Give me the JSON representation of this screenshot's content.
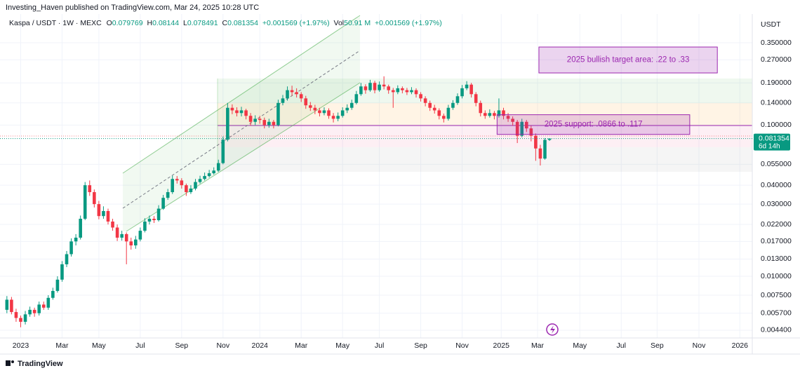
{
  "header": "Investing_Haven published on TradingView.com, Mar 24, 2025 10:28 UTC",
  "footer": "TradingView",
  "chart_data": {
    "type": "candlestick",
    "symbol": "Kaspa / USDT · 1W · MEXC",
    "legend_labels": [
      "O",
      "H",
      "L",
      "C",
      "Vol"
    ],
    "volume": "50.91 M",
    "change": "+0.001569 (+1.97%)",
    "currency": "USDT",
    "countdown": "6d 14h",
    "up_color": "#089981",
    "down_color": "#f23645",
    "log": true,
    "grid": true,
    "ylim": [
      0.00391,
      0.542
    ],
    "yticks": [
      {
        "value": 0.35,
        "label": "0.350000"
      },
      {
        "value": 0.27,
        "label": "0.270000"
      },
      {
        "value": 0.19,
        "label": "0.190000"
      },
      {
        "value": 0.14,
        "label": "0.140000"
      },
      {
        "value": 0.1,
        "label": "0.100000"
      },
      {
        "value": 0.055,
        "label": "0.055000"
      },
      {
        "value": 0.04,
        "label": "0.040000"
      },
      {
        "value": 0.03,
        "label": "0.030000"
      },
      {
        "value": 0.022,
        "label": "0.022000"
      },
      {
        "value": 0.017,
        "label": "0.017000"
      },
      {
        "value": 0.013,
        "label": "0.013000"
      },
      {
        "value": 0.01,
        "label": "0.010000"
      },
      {
        "value": 0.0075,
        "label": "0.007500"
      },
      {
        "value": 0.0057,
        "label": "0.005700"
      },
      {
        "value": 0.0044,
        "label": "0.004400"
      }
    ],
    "xlim": [
      -1.5,
      162.1
    ],
    "xticks": [
      {
        "value": 3,
        "label": "2023"
      },
      {
        "value": 12,
        "label": "Mar"
      },
      {
        "value": 20,
        "label": "May"
      },
      {
        "value": 29,
        "label": "Jul"
      },
      {
        "value": 38,
        "label": "Sep"
      },
      {
        "value": 47,
        "label": "Nov"
      },
      {
        "value": 55,
        "label": "2024"
      },
      {
        "value": 64,
        "label": "Mar"
      },
      {
        "value": 73,
        "label": "May"
      },
      {
        "value": 81,
        "label": "Jul"
      },
      {
        "value": 90,
        "label": "Sep"
      },
      {
        "value": 99,
        "label": "Nov"
      },
      {
        "value": 107.5,
        "label": "2025"
      },
      {
        "value": 115.4,
        "label": "Mar"
      },
      {
        "value": 124.6,
        "label": "May"
      },
      {
        "value": 133.6,
        "label": "Jul"
      },
      {
        "value": 141.4,
        "label": "Sep"
      },
      {
        "value": 150.5,
        "label": "Nov"
      },
      {
        "value": 159.4,
        "label": "2026"
      }
    ],
    "annotations": [
      {
        "text": "2025 bullish target area: .22 to .33",
        "x": [
          115.7,
          154.5
        ],
        "y": [
          0.221,
          0.328
        ]
      },
      {
        "text": "2025 support: .0866 to .117",
        "x": [
          106.6,
          148.5
        ],
        "y": [
          0.0867,
          0.117
        ]
      }
    ],
    "ohlc": [
      [
        0.006,
        0.0074,
        0.0057,
        0.007
      ],
      [
        0.007,
        0.0073,
        0.0056,
        0.0058
      ],
      [
        0.0058,
        0.0061,
        0.005,
        0.0053
      ],
      [
        0.0053,
        0.0055,
        0.0046,
        0.005
      ],
      [
        0.005,
        0.0059,
        0.0048,
        0.0056
      ],
      [
        0.0056,
        0.0063,
        0.0054,
        0.006
      ],
      [
        0.006,
        0.0062,
        0.0054,
        0.0057
      ],
      [
        0.0057,
        0.0068,
        0.0055,
        0.0065
      ],
      [
        0.0065,
        0.0068,
        0.006,
        0.0062
      ],
      [
        0.0062,
        0.0075,
        0.006,
        0.0072
      ],
      [
        0.0072,
        0.0084,
        0.007,
        0.008
      ],
      [
        0.008,
        0.01,
        0.0078,
        0.0095
      ],
      [
        0.0095,
        0.0126,
        0.0092,
        0.012
      ],
      [
        0.012,
        0.0147,
        0.0115,
        0.014
      ],
      [
        0.014,
        0.0178,
        0.0135,
        0.017
      ],
      [
        0.017,
        0.019,
        0.016,
        0.018
      ],
      [
        0.018,
        0.0252,
        0.0175,
        0.024
      ],
      [
        0.024,
        0.042,
        0.0235,
        0.04
      ],
      [
        0.04,
        0.043,
        0.034,
        0.036
      ],
      [
        0.036,
        0.0375,
        0.0285,
        0.03
      ],
      [
        0.03,
        0.0315,
        0.0238,
        0.025
      ],
      [
        0.025,
        0.029,
        0.024,
        0.027
      ],
      [
        0.027,
        0.028,
        0.022,
        0.023
      ],
      [
        0.023,
        0.024,
        0.02,
        0.021
      ],
      [
        0.021,
        0.022,
        0.0171,
        0.018
      ],
      [
        0.018,
        0.02,
        0.0172,
        0.019
      ],
      [
        0.019,
        0.0195,
        0.012,
        0.017
      ],
      [
        0.017,
        0.018,
        0.015,
        0.016
      ],
      [
        0.016,
        0.0185,
        0.0152,
        0.0175
      ],
      [
        0.0175,
        0.021,
        0.017,
        0.02
      ],
      [
        0.02,
        0.0242,
        0.0195,
        0.023
      ],
      [
        0.023,
        0.0252,
        0.022,
        0.024
      ],
      [
        0.024,
        0.025,
        0.0225,
        0.0235
      ],
      [
        0.0235,
        0.0295,
        0.023,
        0.028
      ],
      [
        0.028,
        0.0345,
        0.0275,
        0.033
      ],
      [
        0.033,
        0.0378,
        0.032,
        0.036
      ],
      [
        0.036,
        0.0462,
        0.035,
        0.044
      ],
      [
        0.044,
        0.046,
        0.041,
        0.043
      ],
      [
        0.043,
        0.0445,
        0.038,
        0.04
      ],
      [
        0.04,
        0.041,
        0.034,
        0.036
      ],
      [
        0.036,
        0.04,
        0.035,
        0.038
      ],
      [
        0.038,
        0.044,
        0.037,
        0.042
      ],
      [
        0.042,
        0.0462,
        0.041,
        0.044
      ],
      [
        0.044,
        0.0485,
        0.043,
        0.046
      ],
      [
        0.046,
        0.0505,
        0.045,
        0.048
      ],
      [
        0.048,
        0.0525,
        0.047,
        0.05
      ],
      [
        0.05,
        0.059,
        0.049,
        0.056
      ],
      [
        0.056,
        0.084,
        0.055,
        0.08
      ],
      [
        0.08,
        0.14,
        0.078,
        0.13
      ],
      [
        0.13,
        0.137,
        0.118,
        0.125
      ],
      [
        0.125,
        0.131,
        0.114,
        0.12
      ],
      [
        0.12,
        0.132,
        0.114,
        0.125
      ],
      [
        0.125,
        0.128,
        0.109,
        0.115
      ],
      [
        0.115,
        0.12,
        0.099,
        0.105
      ],
      [
        0.105,
        0.116,
        0.1,
        0.11
      ],
      [
        0.11,
        0.115,
        0.102,
        0.108
      ],
      [
        0.108,
        0.112,
        0.095,
        0.1
      ],
      [
        0.1,
        0.11,
        0.096,
        0.105
      ],
      [
        0.105,
        0.108,
        0.095,
        0.1
      ],
      [
        0.1,
        0.147,
        0.098,
        0.14
      ],
      [
        0.14,
        0.158,
        0.135,
        0.15
      ],
      [
        0.15,
        0.18,
        0.145,
        0.17
      ],
      [
        0.17,
        0.182,
        0.156,
        0.165
      ],
      [
        0.165,
        0.175,
        0.152,
        0.16
      ],
      [
        0.16,
        0.165,
        0.142,
        0.15
      ],
      [
        0.15,
        0.156,
        0.128,
        0.135
      ],
      [
        0.135,
        0.142,
        0.124,
        0.13
      ],
      [
        0.13,
        0.136,
        0.118,
        0.125
      ],
      [
        0.125,
        0.13,
        0.114,
        0.12
      ],
      [
        0.12,
        0.131,
        0.116,
        0.125
      ],
      [
        0.125,
        0.129,
        0.11,
        0.115
      ],
      [
        0.115,
        0.12,
        0.104,
        0.11
      ],
      [
        0.11,
        0.121,
        0.106,
        0.115
      ],
      [
        0.115,
        0.131,
        0.112,
        0.125
      ],
      [
        0.125,
        0.137,
        0.12,
        0.13
      ],
      [
        0.13,
        0.147,
        0.126,
        0.14
      ],
      [
        0.14,
        0.168,
        0.137,
        0.16
      ],
      [
        0.16,
        0.19,
        0.156,
        0.18
      ],
      [
        0.18,
        0.186,
        0.161,
        0.17
      ],
      [
        0.17,
        0.199,
        0.166,
        0.19
      ],
      [
        0.19,
        0.196,
        0.162,
        0.17
      ],
      [
        0.17,
        0.194,
        0.166,
        0.185
      ],
      [
        0.185,
        0.21,
        0.172,
        0.18
      ],
      [
        0.18,
        0.185,
        0.161,
        0.17
      ],
      [
        0.17,
        0.176,
        0.13,
        0.165
      ],
      [
        0.165,
        0.183,
        0.16,
        0.175
      ],
      [
        0.175,
        0.18,
        0.162,
        0.17
      ],
      [
        0.17,
        0.176,
        0.158,
        0.165
      ],
      [
        0.165,
        0.178,
        0.16,
        0.17
      ],
      [
        0.17,
        0.175,
        0.152,
        0.16
      ],
      [
        0.16,
        0.165,
        0.143,
        0.15
      ],
      [
        0.15,
        0.155,
        0.133,
        0.14
      ],
      [
        0.14,
        0.145,
        0.124,
        0.13
      ],
      [
        0.13,
        0.136,
        0.119,
        0.125
      ],
      [
        0.125,
        0.129,
        0.109,
        0.115
      ],
      [
        0.115,
        0.119,
        0.104,
        0.11
      ],
      [
        0.11,
        0.136,
        0.107,
        0.13
      ],
      [
        0.13,
        0.146,
        0.126,
        0.14
      ],
      [
        0.14,
        0.162,
        0.136,
        0.155
      ],
      [
        0.155,
        0.184,
        0.15,
        0.175
      ],
      [
        0.175,
        0.195,
        0.17,
        0.185
      ],
      [
        0.185,
        0.19,
        0.152,
        0.16
      ],
      [
        0.16,
        0.165,
        0.133,
        0.14
      ],
      [
        0.14,
        0.145,
        0.114,
        0.12
      ],
      [
        0.12,
        0.125,
        0.11,
        0.115
      ],
      [
        0.115,
        0.127,
        0.112,
        0.12
      ],
      [
        0.12,
        0.124,
        0.109,
        0.115
      ],
      [
        0.115,
        0.15,
        0.112,
        0.125
      ],
      [
        0.125,
        0.13,
        0.109,
        0.115
      ],
      [
        0.115,
        0.12,
        0.105,
        0.11
      ],
      [
        0.11,
        0.114,
        0.099,
        0.105
      ],
      [
        0.105,
        0.108,
        0.076,
        0.085
      ],
      [
        0.085,
        0.11,
        0.083,
        0.105
      ],
      [
        0.105,
        0.108,
        0.09,
        0.095
      ],
      [
        0.095,
        0.099,
        0.078,
        0.085
      ],
      [
        0.085,
        0.088,
        0.058,
        0.07
      ],
      [
        0.07,
        0.074,
        0.054,
        0.06
      ],
      [
        0.06,
        0.082,
        0.059,
        0.079785
      ],
      [
        0.079769,
        0.08144,
        0.078491,
        0.081354
      ]
    ]
  }
}
